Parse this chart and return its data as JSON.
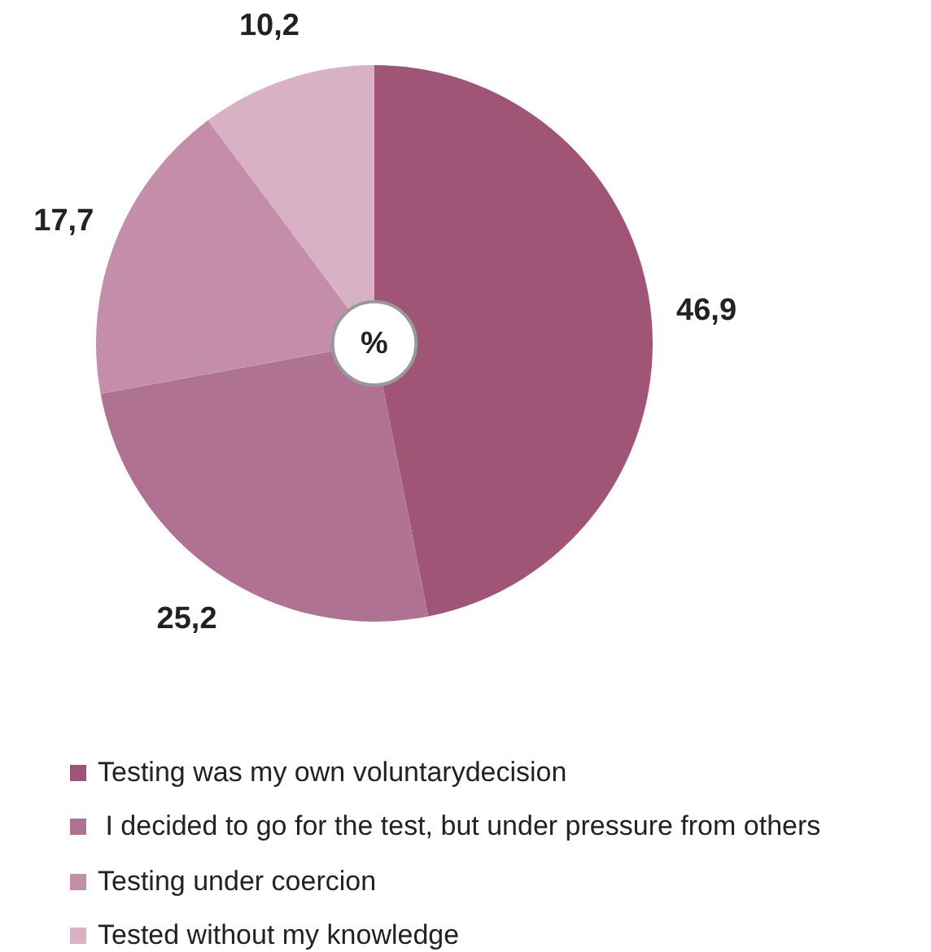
{
  "chart_data": {
    "type": "donut",
    "categories": [
      "Testing was my own voluntarydecision",
      " I decided to go for the test, but under pressure from others",
      "Testing under coercion",
      "Tested without my knowledge"
    ],
    "values": [
      46.9,
      25.2,
      17.7,
      10.2
    ],
    "colors": [
      "#a05577",
      "#b07292",
      "#c48eab",
      "#d8b1c4"
    ],
    "value_labels": [
      "46,9",
      "25,2",
      "17,7",
      "10,2"
    ],
    "annotations": [
      "%"
    ],
    "legend": "bottom"
  }
}
